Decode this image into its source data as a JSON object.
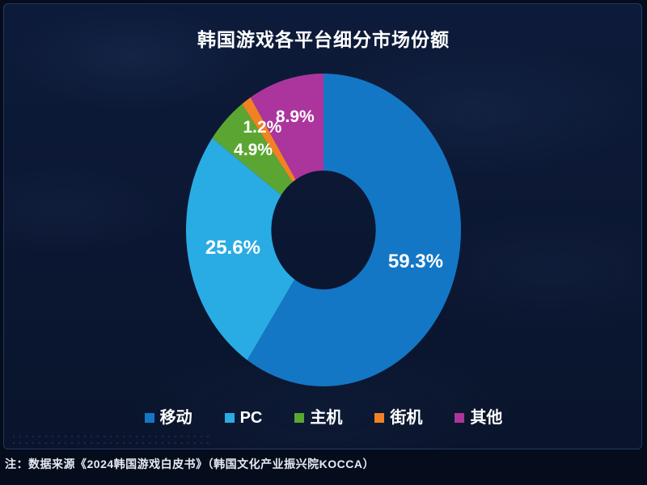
{
  "title": "韩国游戏各平台细分市场份额",
  "footnote": "注：数据来源《2024韩国游戏白皮书》（韩国文化产业振兴院KOCCA）",
  "colors": {
    "background": "#0b1732",
    "panel_border": "#2a456f",
    "text": "#ffffff"
  },
  "chart_data": {
    "type": "pie",
    "title": "韩国游戏各平台细分市场份额",
    "donut": true,
    "inner_radius_ratio": 0.38,
    "start_angle_deg": 0,
    "direction": "clockwise",
    "legend_position": "bottom",
    "unit": "%",
    "slices": [
      {
        "id": "mobile",
        "label": "移动",
        "value": 59.3,
        "display": "59.3%",
        "color": "#1377c5",
        "label_r": 0.7
      },
      {
        "id": "pc",
        "label": "PC",
        "value": 25.6,
        "display": "25.6%",
        "color": "#29ace4",
        "label_r": 0.67
      },
      {
        "id": "console",
        "label": "主机",
        "value": 4.9,
        "display": "4.9%",
        "color": "#5ba633",
        "label_r": 0.72
      },
      {
        "id": "arcade",
        "label": "街机",
        "value": 1.2,
        "display": "1.2%",
        "color": "#f08223",
        "label_r": 0.79
      },
      {
        "id": "other",
        "label": "其他",
        "value": 8.9,
        "display": "8.9%",
        "color": "#ab359d",
        "label_r": 0.75
      }
    ]
  }
}
